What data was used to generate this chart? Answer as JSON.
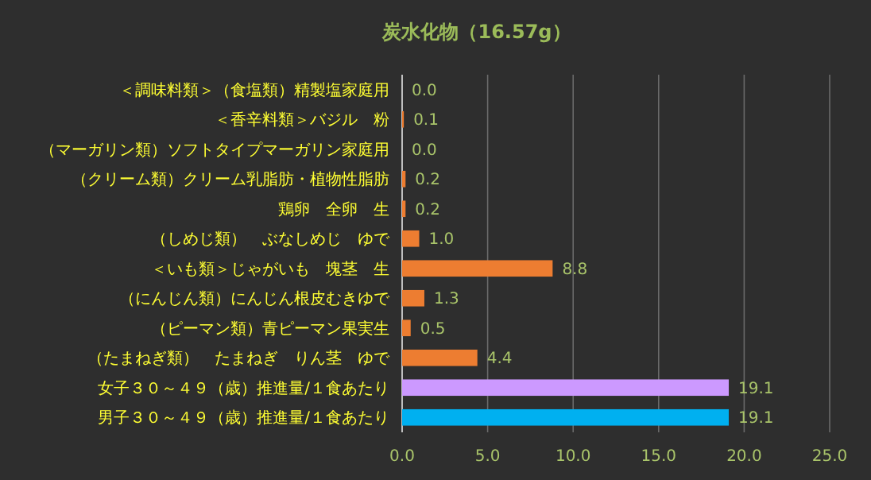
{
  "chart_data": {
    "type": "bar",
    "orientation": "horizontal",
    "title": "炭水化物（16.57g）",
    "categories": [
      "＜調味料類＞（食塩類）精製塩家庭用",
      "＜香辛料類＞バジル　粉",
      "（マーガリン類）ソフトタイプマーガリン家庭用",
      "（クリーム類）クリーム乳脂肪・植物性脂肪",
      "鶏卵　全卵　生",
      "（しめじ類）　ぶなしめじ　ゆで",
      "＜いも類＞じゃがいも　塊茎　生",
      "（にんじん類）にんじん根皮むきゆで",
      "（ピーマン類）青ピーマン果実生",
      "（たまねぎ類）　たまねぎ　りん茎　ゆで",
      "女子３０～４９（歳）推進量/１食あたり",
      "男子３０～４９（歳）推進量/１食あたり"
    ],
    "values": [
      0.0,
      0.1,
      0.0,
      0.2,
      0.2,
      1.0,
      8.8,
      1.3,
      0.5,
      4.4,
      19.1,
      19.1
    ],
    "value_labels": [
      "0.0",
      "0.1",
      "0.0",
      "0.2",
      "0.2",
      "1.0",
      "8.8",
      "1.3",
      "0.5",
      "4.4",
      "19.1",
      "19.1"
    ],
    "colors": [
      "#ed7d31",
      "#ed7d31",
      "#ed7d31",
      "#ed7d31",
      "#ed7d31",
      "#ed7d31",
      "#ed7d31",
      "#ed7d31",
      "#ed7d31",
      "#ed7d31",
      "#cc99ff",
      "#00b0f0"
    ],
    "xlim": [
      0,
      25
    ],
    "xticks": [
      {
        "value": 0,
        "label": "0.0"
      },
      {
        "value": 5,
        "label": "5.0"
      },
      {
        "value": 10,
        "label": "10.0"
      },
      {
        "value": 15,
        "label": "15.0"
      },
      {
        "value": 20,
        "label": "20.0"
      },
      {
        "value": 25,
        "label": "25.0"
      }
    ],
    "grid": "x"
  }
}
